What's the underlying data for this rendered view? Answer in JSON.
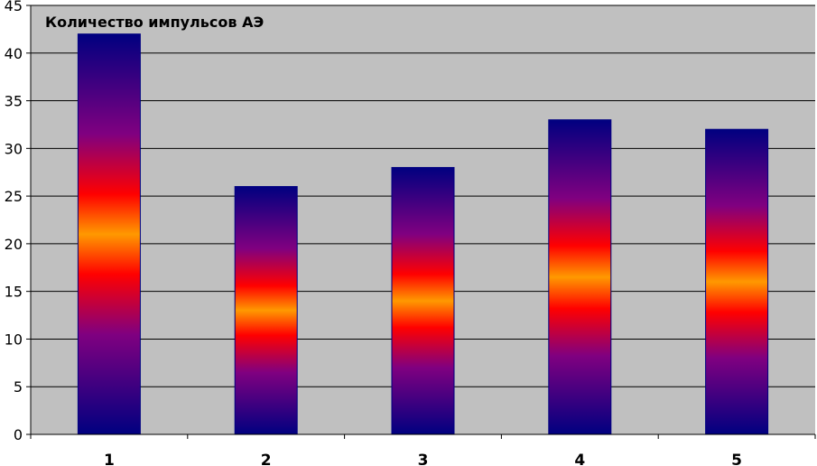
{
  "chart_data": {
    "type": "bar",
    "title": "Количество импульсов АЭ",
    "xlabel": "",
    "ylabel": "",
    "categories": [
      "1",
      "2",
      "3",
      "4",
      "5"
    ],
    "values": [
      42,
      26,
      28,
      33,
      32
    ],
    "ylim": [
      0,
      45
    ],
    "yticks": [
      0,
      5,
      10,
      15,
      20,
      25,
      30,
      35,
      40,
      45
    ],
    "grid": true,
    "legend": "none",
    "colors": {
      "plot_background": "#c0c0c0",
      "gridline": "#000000",
      "bar_edge": "#000080",
      "gradient_dark": "#000080",
      "gradient_mid": "#800080",
      "gradient_red": "#ff0000",
      "gradient_peak": "#ff9900"
    }
  }
}
